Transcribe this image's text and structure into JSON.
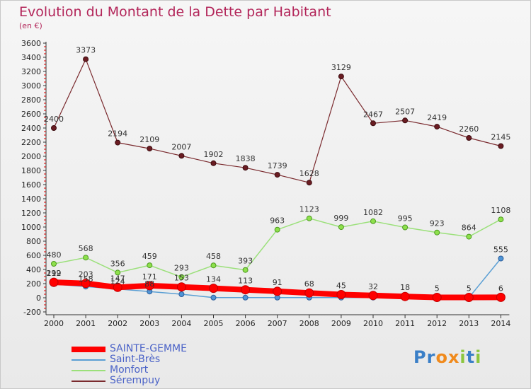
{
  "title": "Evolution du Montant de la Dette par Habitant",
  "subtitle": "(en €)",
  "logo": {
    "letters": [
      "P",
      "r",
      "o",
      "x",
      "i",
      "t",
      "i"
    ],
    "colors": [
      "#3a7fc7",
      "#3a7fc7",
      "#f08a1c",
      "#f08a1c",
      "#8cc63f",
      "#3a7fc7",
      "#8cc63f"
    ]
  },
  "chart_data": {
    "type": "line",
    "x": [
      "2000",
      "2001",
      "2002",
      "2003",
      "2004",
      "2005",
      "2006",
      "2007",
      "2008",
      "2009",
      "2010",
      "2011",
      "2012",
      "2013",
      "2014"
    ],
    "ylim": [
      -200,
      3600
    ],
    "yticks": [
      -200,
      0,
      200,
      400,
      600,
      800,
      1000,
      1200,
      1400,
      1600,
      1800,
      2000,
      2200,
      2400,
      2600,
      2800,
      3000,
      3200,
      3400,
      3600
    ],
    "grid": false,
    "legend": "bottom-left",
    "series": [
      {
        "name": "SAINTE-GEMME",
        "color": "#ff0000",
        "values": [
          219,
          203,
          147,
          171,
          153,
          134,
          113,
          91,
          68,
          45,
          32,
          18,
          5,
          5,
          6
        ],
        "labels": [
          "219",
          "203",
          "147",
          "171",
          "153",
          "134",
          "113",
          "91",
          "68",
          "45",
          "32",
          "18",
          "5",
          "5",
          "6"
        ]
      },
      {
        "name": "Saint-Brès",
        "color": "#5a9fd4",
        "values": [
          192,
          158,
          124,
          88,
          50,
          2,
          2,
          2,
          2,
          2,
          2,
          2,
          2,
          2,
          555
        ],
        "labels": [
          "192",
          "158",
          "124",
          "88",
          "",
          "",
          "",
          "",
          "",
          "",
          "",
          "",
          "",
          "",
          "555"
        ]
      },
      {
        "name": "Monfort",
        "color": "#9be07a",
        "values": [
          480,
          568,
          356,
          459,
          293,
          458,
          393,
          963,
          1123,
          999,
          1082,
          995,
          923,
          864,
          1108
        ],
        "labels": [
          "480",
          "568",
          "356",
          "459",
          "293",
          "458",
          "393",
          "963",
          "1123",
          "999",
          "1082",
          "995",
          "923",
          "864",
          "1108"
        ]
      },
      {
        "name": "Sérempuy",
        "color": "#7a2a2e",
        "values": [
          2400,
          3373,
          2194,
          2109,
          2007,
          1902,
          1838,
          1739,
          1628,
          3129,
          2467,
          2507,
          2419,
          2260,
          2145
        ],
        "labels": [
          "2400",
          "3373",
          "2194",
          "2109",
          "2007",
          "1902",
          "1838",
          "1739",
          "1628",
          "3129",
          "2467",
          "2507",
          "2419",
          "2260",
          "2145"
        ]
      }
    ]
  }
}
